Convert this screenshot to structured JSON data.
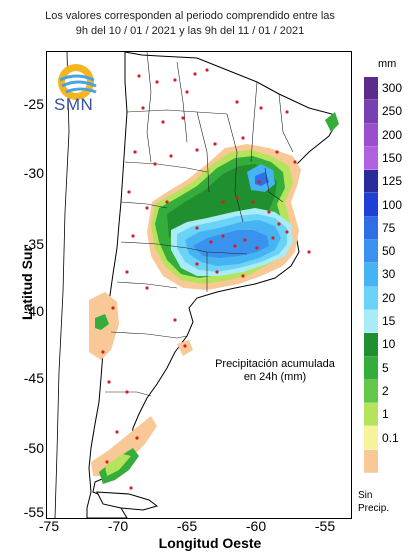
{
  "header": {
    "line1": "Los valores corresponden al periodo comprendido entre las",
    "line2": "9h del 10 / 01 / 2021  y las 9h del 11 / 01 / 2021"
  },
  "logo": {
    "text": "SMN",
    "icon": "smn-sun-wave-logo"
  },
  "axes": {
    "ylabel": "Latitud Sur",
    "xlabel": "Longitud Oeste",
    "yticks": [
      "-25",
      "-30",
      "-35",
      "-40",
      "-45",
      "-50",
      "-55"
    ],
    "xticks": [
      "-75",
      "-70",
      "-65",
      "-60",
      "-55"
    ]
  },
  "annotation": {
    "line1": "Precipitación acumulada",
    "line2": "en 24h (mm)"
  },
  "legend": {
    "unit": "mm",
    "items": [
      {
        "label": "300",
        "color": "#5b2c8c"
      },
      {
        "label": "250",
        "color": "#7a3fb0"
      },
      {
        "label": "200",
        "color": "#9a4fcf"
      },
      {
        "label": "150",
        "color": "#b060e0"
      },
      {
        "label": "125",
        "color": "#2a2a9a"
      },
      {
        "label": "100",
        "color": "#1f3fd6"
      },
      {
        "label": "75",
        "color": "#2e6fe6"
      },
      {
        "label": "50",
        "color": "#3a92ef"
      },
      {
        "label": "30",
        "color": "#46b4f3"
      },
      {
        "label": "20",
        "color": "#6ad3f7"
      },
      {
        "label": "15",
        "color": "#a8ecf8"
      },
      {
        "label": "10",
        "color": "#1f8f2f"
      },
      {
        "label": "5",
        "color": "#34ad3a"
      },
      {
        "label": "2",
        "color": "#63c84a"
      },
      {
        "label": "1",
        "color": "#b5e35c"
      },
      {
        "label": "0.1",
        "color": "#f7f39a"
      },
      {
        "label": "",
        "color": "#f8c896"
      }
    ],
    "nodata_line1": "Sin",
    "nodata_line2": "Precip."
  },
  "colors": {
    "station_dot": "#d42020",
    "border": "#000000",
    "nodata": "#f8c896"
  }
}
